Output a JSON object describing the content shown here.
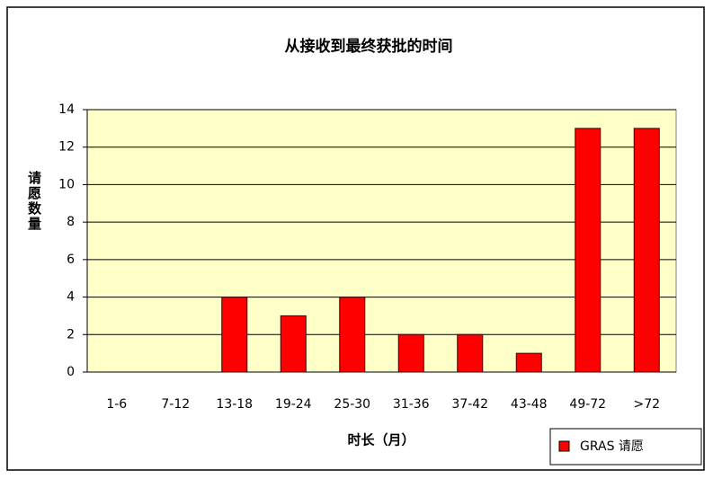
{
  "chart_data": {
    "type": "bar",
    "title": "从接收到最终获批的时间",
    "x_label": "时长（月）",
    "y_label": "请愿数量",
    "categories": [
      "1-6",
      "7-12",
      "13-18",
      "19-24",
      "25-30",
      "31-36",
      "37-42",
      "43-48",
      "49-72",
      ">72"
    ],
    "series": [
      {
        "name": "GRAS 请愿",
        "color": "#ff0000",
        "values": [
          0,
          0,
          4,
          3,
          4,
          2,
          2,
          1,
          13,
          13
        ]
      }
    ],
    "ylim": [
      0,
      14
    ],
    "yticks": [
      0,
      2,
      4,
      6,
      8,
      10,
      12,
      14
    ],
    "grid": true,
    "legend": "lower-right"
  }
}
